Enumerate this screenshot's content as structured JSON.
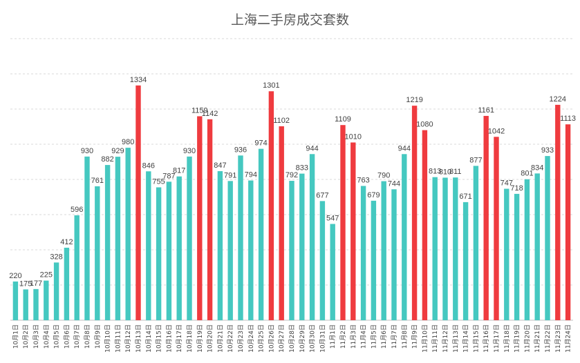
{
  "chart_data": {
    "type": "bar",
    "title": "上海二手房成交套数",
    "xlabel": "",
    "ylabel": "",
    "ylim": [
      0,
      1600
    ],
    "grid": true,
    "categories": [
      "10月1日",
      "10月2日",
      "10月3日",
      "10月4日",
      "10月5日",
      "10月6日",
      "10月7日",
      "10月8日",
      "10月9日",
      "10月10日",
      "10月11日",
      "10月12日",
      "10月13日",
      "10月14日",
      "10月15日",
      "10月16日",
      "10月17日",
      "10月18日",
      "10月19日",
      "10月20日",
      "10月21日",
      "10月22日",
      "10月23日",
      "10月24日",
      "10月25日",
      "10月26日",
      "10月27日",
      "10月28日",
      "10月29日",
      "10月30日",
      "10月31日",
      "11月1日",
      "11月2日",
      "11月3日",
      "11月4日",
      "11月5日",
      "11月6日",
      "11月7日",
      "11月8日",
      "11月9日",
      "11月10日",
      "11月11日",
      "11月12日",
      "11月13日",
      "11月14日",
      "11月15日",
      "11月16日",
      "11月17日",
      "11月18日",
      "11月19日",
      "11月20日",
      "11月21日",
      "11月22日",
      "11月23日",
      "11月24日"
    ],
    "values": [
      220,
      175,
      177,
      225,
      328,
      412,
      596,
      930,
      761,
      882,
      929,
      980,
      1334,
      846,
      755,
      787,
      817,
      930,
      1159,
      1142,
      847,
      791,
      936,
      794,
      974,
      1301,
      1102,
      792,
      833,
      944,
      677,
      547,
      1109,
      1010,
      763,
      679,
      790,
      744,
      944,
      1219,
      1080,
      813,
      810,
      811,
      671,
      877,
      1161,
      1042,
      747,
      718,
      801,
      834,
      933,
      1224,
      1113
    ],
    "highlight": [
      false,
      false,
      false,
      false,
      false,
      false,
      false,
      false,
      false,
      false,
      false,
      false,
      true,
      false,
      false,
      false,
      false,
      false,
      true,
      true,
      false,
      false,
      false,
      false,
      false,
      true,
      true,
      false,
      false,
      false,
      false,
      false,
      true,
      true,
      false,
      false,
      false,
      false,
      false,
      true,
      true,
      false,
      false,
      false,
      false,
      false,
      true,
      true,
      false,
      false,
      false,
      false,
      false,
      true,
      true
    ],
    "colors": {
      "normal": "#45C8C0",
      "highlight": "#EF3B3F",
      "grid": "#D9D9D9",
      "axis": "#BFBFBF"
    }
  }
}
